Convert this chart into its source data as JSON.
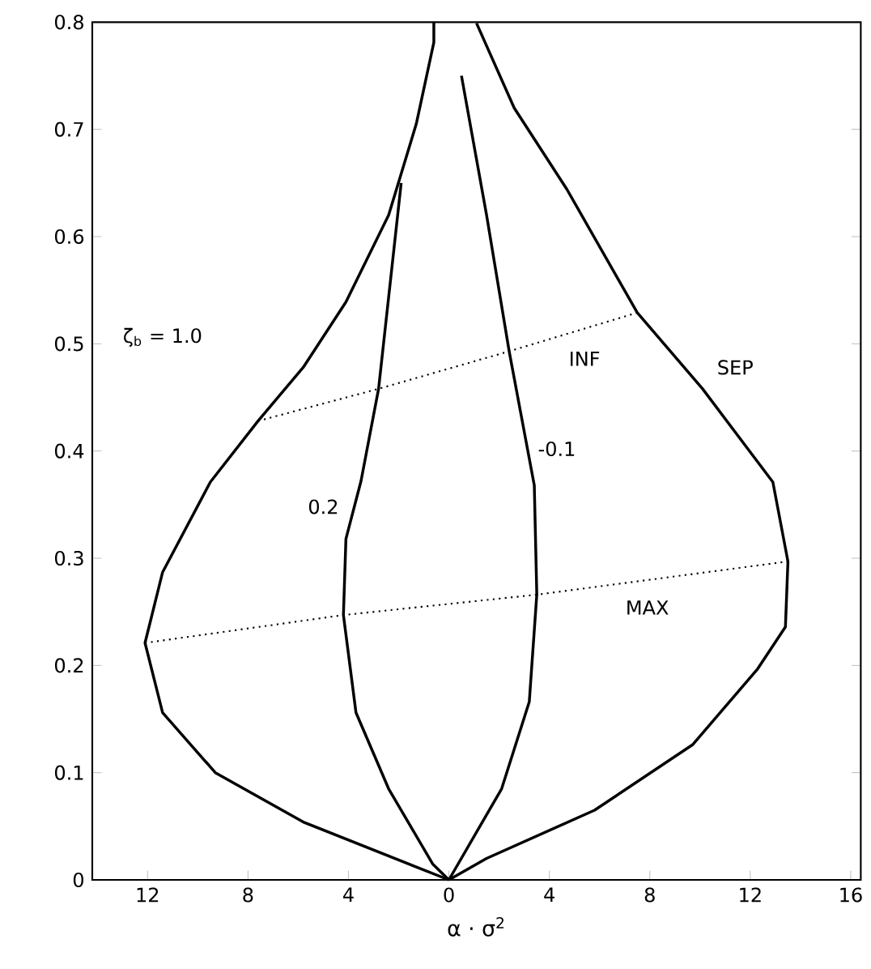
{
  "chart_data": {
    "type": "line",
    "xlabel": "α · σ$^{2}$",
    "xlim": [
      -14.2,
      16.4
    ],
    "ylim": [
      0,
      0.8
    ],
    "xticks": [
      {
        "value": -12,
        "label": "12"
      },
      {
        "value": -8,
        "label": "8"
      },
      {
        "value": -4,
        "label": "4"
      },
      0,
      4,
      8,
      12,
      16
    ],
    "yticks": [
      0,
      0.1,
      0.2,
      0.3,
      0.4,
      0.5,
      0.6,
      0.7,
      0.8
    ],
    "grid": false,
    "series": [
      {
        "color": "#000000",
        "line_style": "solid",
        "marker": "none",
        "x": [
          0,
          -5.8,
          -9.3,
          -11.4,
          -12.1,
          -11.4,
          -9.5,
          -7.6,
          -5.8,
          -4.1,
          -2.4,
          -1.3,
          -0.6,
          -0.6
        ],
        "values": [
          0,
          0.054,
          0.1,
          0.156,
          0.221,
          0.287,
          0.371,
          0.428,
          0.478,
          0.539,
          0.62,
          0.705,
          0.781,
          0.8
        ]
      },
      {
        "color": "#000000",
        "line_style": "solid",
        "marker": "none",
        "x": [
          0,
          1.5,
          5.8,
          9.7,
          12.3,
          13.4,
          13.5,
          12.9,
          10.1,
          7.5,
          4.7,
          2.6,
          1.1
        ],
        "values": [
          0,
          0.02,
          0.065,
          0.126,
          0.197,
          0.236,
          0.297,
          0.371,
          0.458,
          0.529,
          0.644,
          0.72,
          0.799
        ]
      },
      {
        "color": "#000000",
        "line_style": "solid",
        "marker": "none",
        "x": [
          0,
          -0.65,
          -2.4,
          -3.7,
          -4.2,
          -4.1,
          -3.5,
          -2.8,
          -1.9
        ],
        "values": [
          0,
          0.015,
          0.085,
          0.156,
          0.247,
          0.318,
          0.372,
          0.458,
          0.65
        ]
      },
      {
        "color": "#000000",
        "line_style": "solid",
        "marker": "none",
        "x": [
          0,
          2.1,
          3.2,
          3.5,
          3.4,
          2.4,
          1.5,
          0.5
        ],
        "values": [
          0,
          0.085,
          0.166,
          0.266,
          0.368,
          0.493,
          0.62,
          0.75
        ]
      },
      {
        "color": "#000000",
        "line_style": "dotted",
        "x": [
          -7.6,
          -2.8,
          2.4,
          7.5
        ],
        "values": [
          0.428,
          0.458,
          0.493,
          0.529
        ]
      },
      {
        "color": "#000000",
        "line_style": "dotted",
        "x": [
          -12.1,
          -4.2,
          3.5,
          13.5
        ],
        "values": [
          0.221,
          0.247,
          0.266,
          0.297
        ]
      }
    ],
    "annotations": [
      "ζ$_{b}$ = 1.0",
      "INF",
      "SEP",
      "-0.1",
      "0.2",
      "MAX"
    ]
  }
}
